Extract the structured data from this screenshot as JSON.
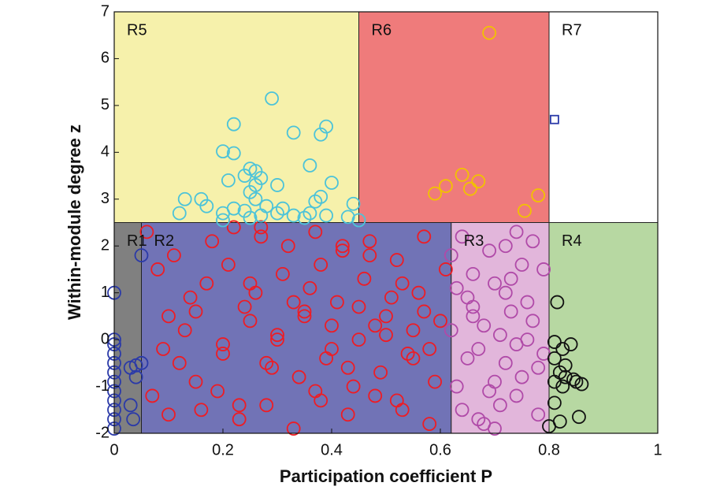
{
  "chart_data": {
    "type": "scatter",
    "x_label": "Participation coefficient P",
    "y_label": "Within-module degree z",
    "xlim": [
      0,
      1
    ],
    "ylim": [
      -2,
      7
    ],
    "xticks": [
      0,
      0.2,
      0.4,
      0.6,
      0.8,
      1
    ],
    "yticks": [
      -2,
      -1,
      0,
      1,
      2,
      3,
      4,
      5,
      6,
      7
    ],
    "regions": [
      {
        "label": "R1",
        "x": [
          0,
          0.05
        ],
        "y": [
          -2,
          2.5
        ],
        "color": "#808080"
      },
      {
        "label": "R2",
        "x": [
          0.05,
          0.62
        ],
        "y": [
          -2,
          2.5
        ],
        "color": "#7173b6"
      },
      {
        "label": "R3",
        "x": [
          0.62,
          0.8
        ],
        "y": [
          -2,
          2.5
        ],
        "color": "#e2b6db"
      },
      {
        "label": "R4",
        "x": [
          0.8,
          1
        ],
        "y": [
          -2,
          2.5
        ],
        "color": "#b7d8a2"
      },
      {
        "label": "R5",
        "x": [
          0,
          0.45
        ],
        "y": [
          2.5,
          7
        ],
        "color": "#f6f1ab"
      },
      {
        "label": "R6",
        "x": [
          0.45,
          0.8
        ],
        "y": [
          2.5,
          7
        ],
        "color": "#ef7b7b"
      },
      {
        "label": "R7",
        "x": [
          0.8,
          1
        ],
        "y": [
          2.5,
          7
        ],
        "color": "#ffffff"
      }
    ],
    "series": [
      {
        "color": "#ee1c24",
        "marker": "circle",
        "x": [
          0.06,
          0.08,
          0.1,
          0.12,
          0.07,
          0.09,
          0.11,
          0.14,
          0.16,
          0.18,
          0.13,
          0.15,
          0.17,
          0.2,
          0.22,
          0.24,
          0.19,
          0.21,
          0.23,
          0.25,
          0.27,
          0.29,
          0.26,
          0.28,
          0.3,
          0.32,
          0.34,
          0.31,
          0.33,
          0.35,
          0.37,
          0.39,
          0.36,
          0.38,
          0.4,
          0.42,
          0.44,
          0.41,
          0.43,
          0.45,
          0.47,
          0.49,
          0.46,
          0.48,
          0.5,
          0.52,
          0.54,
          0.51,
          0.53,
          0.55,
          0.57,
          0.59,
          0.56,
          0.58,
          0.6,
          0.61,
          0.3,
          0.35,
          0.4,
          0.45,
          0.5,
          0.55,
          0.25,
          0.2,
          0.15,
          0.1,
          0.28,
          0.33,
          0.38,
          0.43,
          0.48,
          0.53,
          0.58,
          0.27,
          0.37,
          0.47,
          0.57,
          0.23,
          0.42,
          0.52
        ],
        "values": [
          2.3,
          1.5,
          0.5,
          -0.5,
          -1.2,
          -0.2,
          1.8,
          0.9,
          -1.5,
          2.1,
          0.2,
          -0.9,
          1.2,
          -0.3,
          2.4,
          0.7,
          -1.1,
          1.6,
          -1.7,
          0.4,
          2.2,
          -0.6,
          1.0,
          -1.4,
          0.1,
          2.0,
          -0.8,
          1.4,
          -1.9,
          0.6,
          2.3,
          -0.4,
          1.1,
          -1.3,
          0.3,
          1.9,
          -1.0,
          0.8,
          -1.6,
          0.0,
          2.1,
          -0.7,
          1.3,
          -1.2,
          0.5,
          1.7,
          -0.3,
          0.9,
          -1.5,
          0.2,
          2.2,
          -0.9,
          1.0,
          -1.8,
          0.4,
          1.5,
          0.0,
          0.5,
          -0.2,
          0.7,
          0.1,
          -0.4,
          1.2,
          -0.1,
          0.6,
          -1.6,
          -0.5,
          0.8,
          1.6,
          -0.6,
          0.3,
          1.2,
          -0.2,
          2.4,
          -1.1,
          1.8,
          0.6,
          -1.4,
          2.0,
          -1.3
        ]
      },
      {
        "color": "#b04aa8",
        "marker": "circle",
        "x": [
          0.62,
          0.64,
          0.66,
          0.68,
          0.7,
          0.72,
          0.74,
          0.76,
          0.78,
          0.79,
          0.63,
          0.65,
          0.67,
          0.69,
          0.71,
          0.73,
          0.75,
          0.77,
          0.79,
          0.62,
          0.64,
          0.66,
          0.68,
          0.7,
          0.72,
          0.74,
          0.76,
          0.78,
          0.63,
          0.67,
          0.71,
          0.75,
          0.65,
          0.69,
          0.73,
          0.77,
          0.7,
          0.74,
          0.66,
          0.72
        ],
        "values": [
          1.8,
          2.2,
          0.5,
          -1.8,
          1.2,
          -0.5,
          2.3,
          0.0,
          -1.6,
          1.5,
          -1.0,
          0.9,
          -0.2,
          1.9,
          -1.4,
          0.6,
          -0.8,
          2.1,
          -0.3,
          0.2,
          -1.5,
          1.4,
          0.3,
          -0.9,
          2.0,
          -1.2,
          0.8,
          -0.6,
          1.1,
          -1.7,
          0.1,
          1.6,
          -0.4,
          -1.1,
          1.3,
          0.4,
          -1.9,
          -0.1,
          0.7,
          1.0
        ]
      },
      {
        "color": "#4cc3d9",
        "marker": "circle",
        "x": [
          0.29,
          0.22,
          0.39,
          0.38,
          0.33,
          0.2,
          0.22,
          0.36,
          0.25,
          0.26,
          0.24,
          0.27,
          0.21,
          0.26,
          0.4,
          0.3,
          0.25,
          0.26,
          0.16,
          0.13,
          0.17,
          0.22,
          0.28,
          0.31,
          0.38,
          0.37,
          0.44,
          0.12,
          0.2,
          0.24,
          0.27,
          0.3,
          0.33,
          0.36,
          0.39,
          0.43,
          0.2,
          0.25,
          0.35,
          0.45
        ],
        "values": [
          5.15,
          4.6,
          4.55,
          4.38,
          4.42,
          4.02,
          3.98,
          3.72,
          3.65,
          3.6,
          3.5,
          3.45,
          3.4,
          3.3,
          3.35,
          3.3,
          3.15,
          3.0,
          3.0,
          3.0,
          2.85,
          2.8,
          2.85,
          2.8,
          3.05,
          2.95,
          2.9,
          2.7,
          2.7,
          2.75,
          2.65,
          2.7,
          2.65,
          2.7,
          2.65,
          2.62,
          2.55,
          2.6,
          2.6,
          2.55
        ]
      },
      {
        "color": "#f2c200",
        "marker": "circle",
        "x": [
          0.69,
          0.64,
          0.67,
          0.61,
          0.59,
          0.655,
          0.78,
          0.755
        ],
        "values": [
          6.55,
          3.52,
          3.38,
          3.28,
          3.12,
          3.22,
          3.08,
          2.75
        ]
      },
      {
        "color": "#2b3aa8",
        "marker": "circle",
        "x": [
          0.0,
          0.05,
          0.0,
          0.0,
          0.0,
          0.0,
          0.0,
          0.0,
          0.0,
          0.0,
          0.0,
          0.0,
          0.0,
          0.03,
          0.04,
          0.05,
          0.035,
          0.03,
          0.04
        ],
        "values": [
          1.0,
          1.8,
          0.0,
          -0.1,
          -0.3,
          -0.5,
          -0.7,
          -0.9,
          -1.1,
          -1.3,
          -1.5,
          -1.7,
          -1.9,
          -0.6,
          -0.8,
          -0.5,
          -1.7,
          -1.4,
          -0.55
        ]
      },
      {
        "color": "#2b3aa8",
        "marker": "square",
        "x": [
          0.81
        ],
        "values": [
          4.7
        ]
      },
      {
        "color": "#111111",
        "marker": "circle",
        "x": [
          0.815,
          0.81,
          0.825,
          0.84,
          0.81,
          0.82,
          0.83,
          0.81,
          0.845,
          0.86,
          0.85,
          0.825,
          0.81,
          0.82,
          0.855,
          0.8,
          0.83
        ],
        "values": [
          0.8,
          -0.05,
          -0.2,
          -0.1,
          -0.4,
          -0.7,
          -0.8,
          -0.9,
          -0.85,
          -0.95,
          -0.9,
          -1.0,
          -1.35,
          -1.75,
          -1.65,
          -1.85,
          -0.55
        ]
      }
    ]
  }
}
